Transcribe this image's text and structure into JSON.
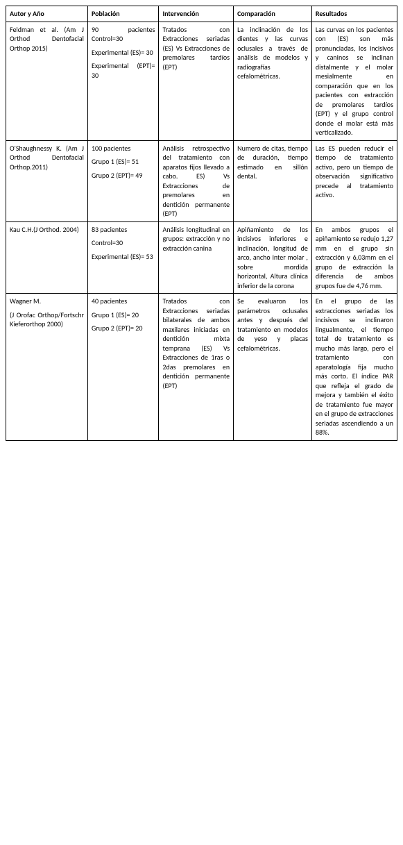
{
  "cols": [
    "Autor y Año",
    "Población",
    "Intervención",
    "Comparación",
    "Resultados"
  ],
  "rows": [
    {
      "a": [
        "Feldman et al. (Am J Orthod Dentofacial Orthop 2015)"
      ],
      "p": [
        "90 pacientes Control=30",
        "Experimental (ES)= 30",
        "Experimental (EPT)= 30"
      ],
      "i": [
        "Tratados con Extracciones seriadas (ES) Vs Extracciones de premolares tardíos (EPT)"
      ],
      "c": [
        "La inclinación de los dientes y las curvas oclusales a través de análisis de modelos y radiografías cefalométricas."
      ],
      "r": [
        "Las curvas en los pacientes con (ES) son más pronunciadas, los incisivos y caninos se inclinan distalmente y el molar mesialmente en comparación que en los pacientes con extracción de premolares tardíos (EPT) y el grupo control donde el molar está más verticalizado."
      ]
    },
    {
      "a": [
        "O'Shaughnessy K. (Am J Orthod Dentofacial Orthop.2011)"
      ],
      "p": [
        "100 pacientes",
        "Grupo 1 (ES)= 51",
        "Grupo 2 (EPT)= 49"
      ],
      "i": [
        "Análisis retrospectivo del tratamiento con aparatos fijos llevado a cabo. ES) Vs Extracciones de premolares en dentición permanente (EPT)"
      ],
      "c": [
        "Numero de citas, tiempo de duración, tiempo estimado en sillón dental."
      ],
      "r": [
        "Las ES pueden reducir el tiempo de tratamiento activo, pero un tiempo de observación significativo precede al tratamiento activo."
      ]
    },
    {
      "a": [
        "Kau C.H.(J Orthod. 2004)"
      ],
      "p": [
        "83 pacientes",
        "Control=30",
        "Experimental (ES)= 53"
      ],
      "i": [
        "Análisis longitudinal en grupos: extracción y no extracción canina"
      ],
      "c": [
        "Apiñamiento de los incisivos inferiores e inclinación, longitud de arco, ancho inter molar , sobre mordida horizontal, Altura clínica inferior de la corona"
      ],
      "r": [
        "En ambos grupos el apiñamiento se redujo 1,27 mm en el grupo sin extracción y 6,03mm en el grupo de extracción la diferencia de ambos grupos fue de 4,76 mm."
      ]
    },
    {
      "a": [
        "Wagner M.",
        "(J Orofac Orthop/Fortschr Kieferorthop 2000)"
      ],
      "p": [
        "40 pacientes",
        "Grupo 1 (ES)= 20",
        "Grupo 2 (EPT)= 20"
      ],
      "i": [
        "Tratados con Extracciones seriadas bilaterales de ambos maxilares iniciadas en dentición mixta temprana (ES) Vs Extracciones de 1ras o 2das premolares en dentición permanente (EPT)"
      ],
      "c": [
        "Se evaluaron los parámetros oclusales antes y después del tratamiento en modelos de yeso y placas cefalométricas."
      ],
      "r": [
        " En el grupo de las extracciones seriadas los incisivos se inclinaron lingualmente, el tiempo total de tratamiento es mucho más largo, pero el tratamiento con aparatología fija mucho más corto. El índice PAR que refleja el  grado de mejora y también el éxito de tratamiento fue mayor en el grupo de extracciones seriadas ascendiendo a un 88%."
      ]
    }
  ]
}
